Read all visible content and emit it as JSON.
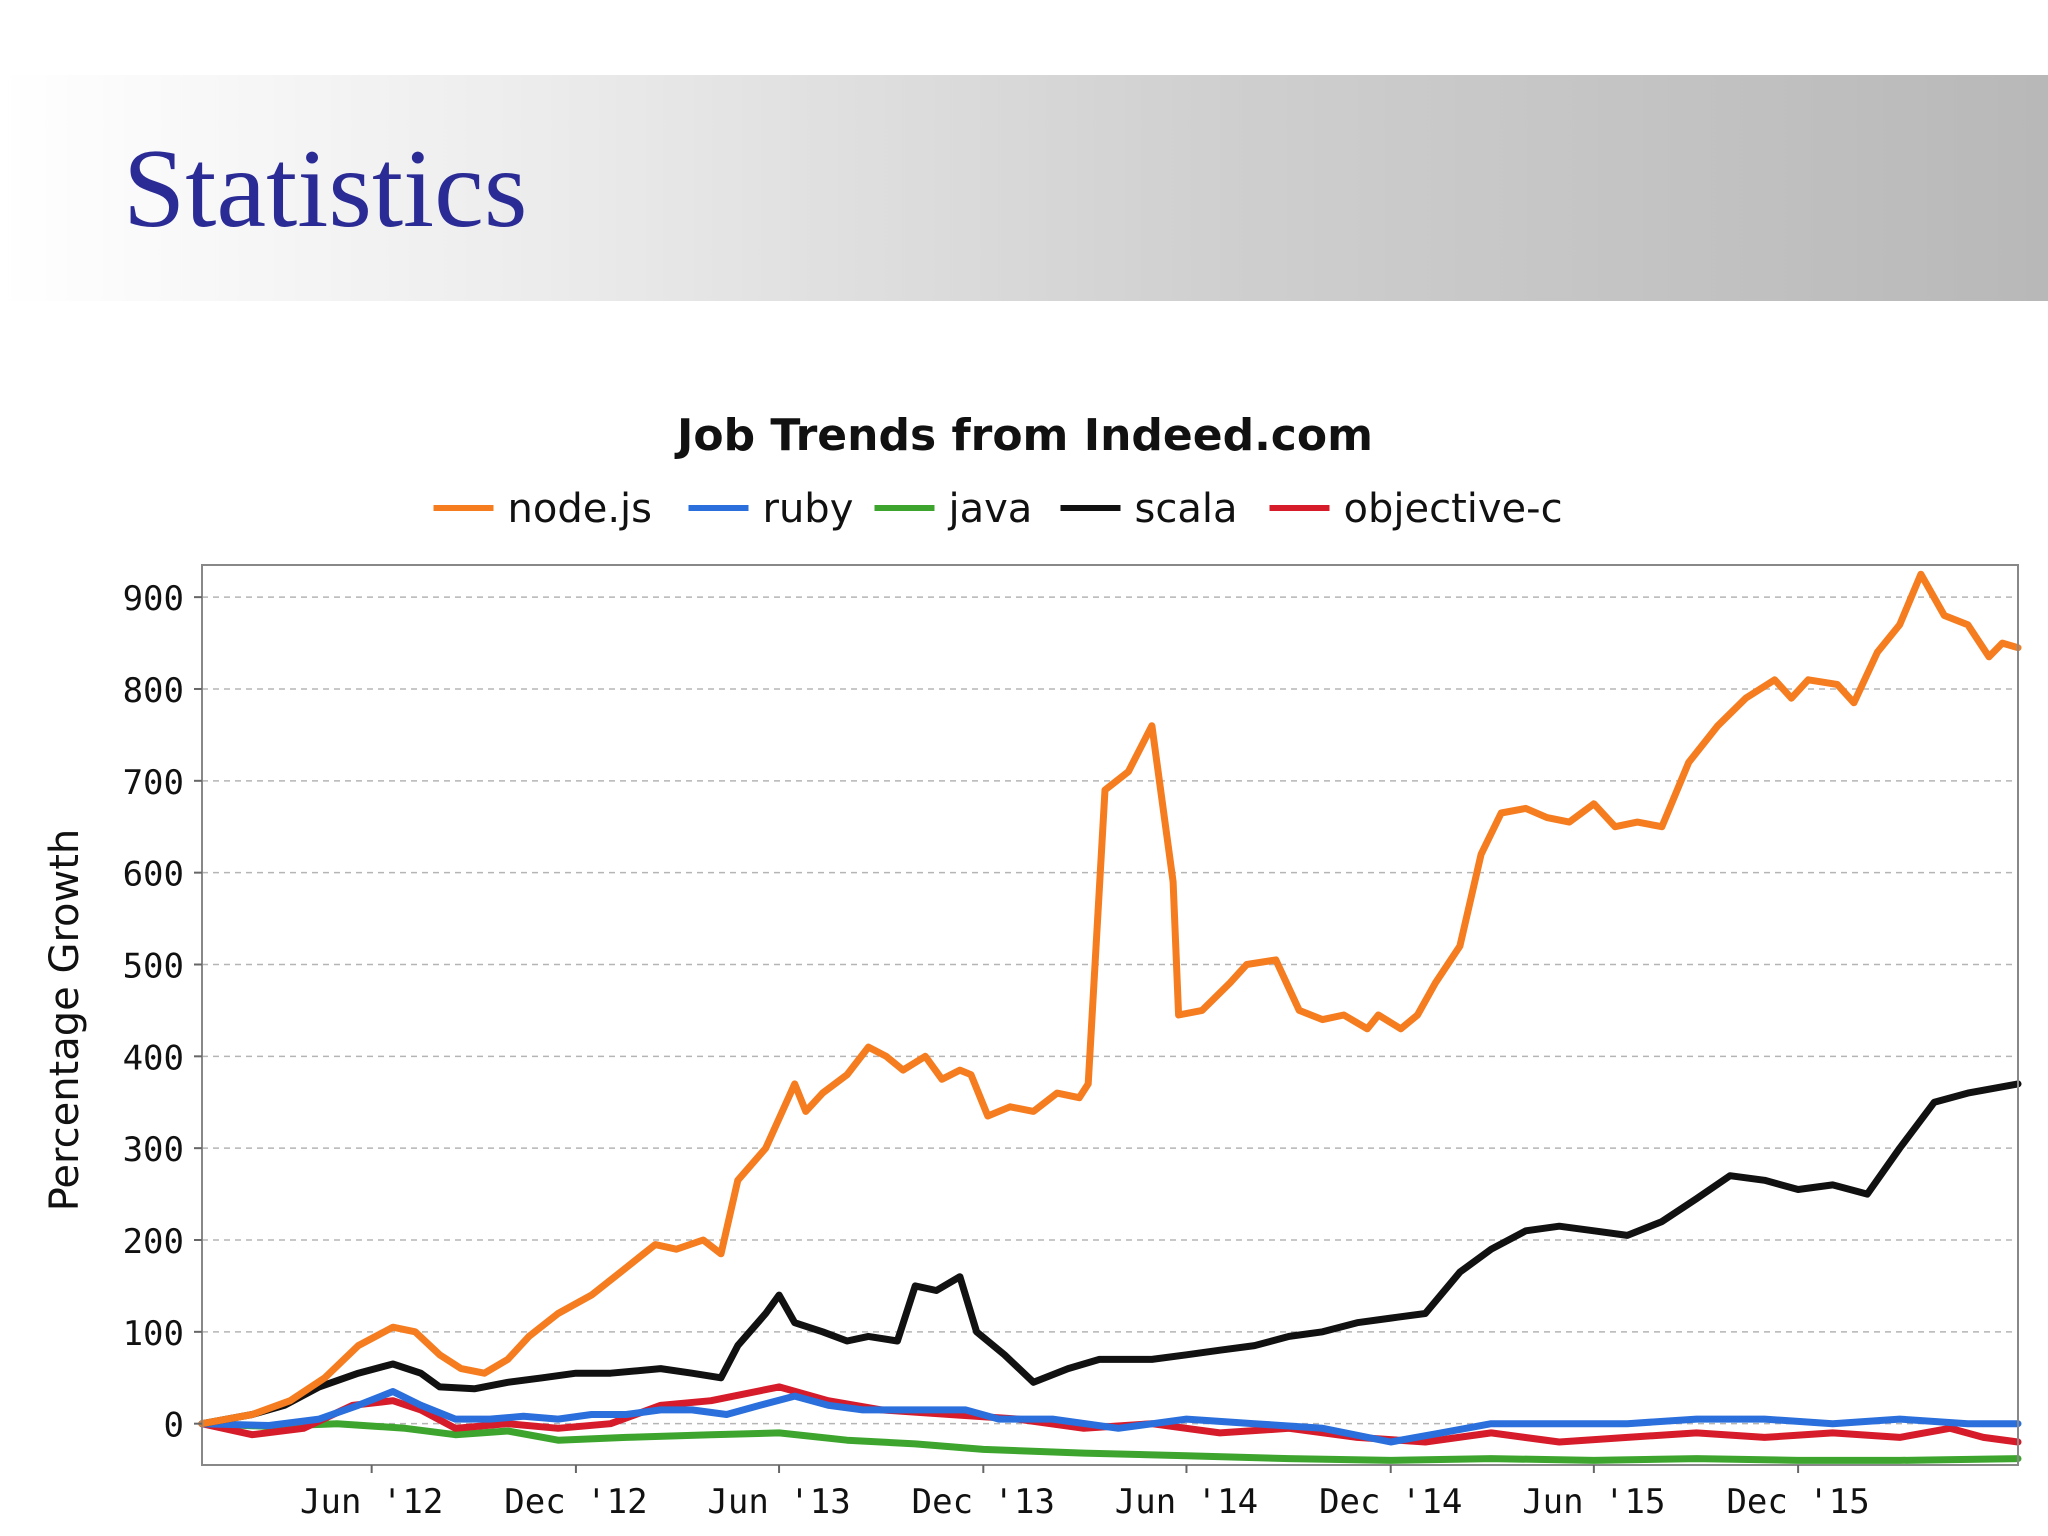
{
  "slide": {
    "title": "Statistics"
  },
  "chart_data": {
    "type": "line",
    "title": "Job Trends from Indeed.com",
    "ylabel": "Percentage Growth",
    "xlabel": "",
    "ylim": [
      -45,
      935
    ],
    "yticks": [
      0,
      100,
      200,
      300,
      400,
      500,
      600,
      700,
      800,
      900
    ],
    "xlim": [
      "2012-01-01",
      "2016-06-15"
    ],
    "xticks": [
      {
        "date": "2012-06-01",
        "label": "Jun '12"
      },
      {
        "date": "2012-12-01",
        "label": "Dec '12"
      },
      {
        "date": "2013-06-01",
        "label": "Jun '13"
      },
      {
        "date": "2013-12-01",
        "label": "Dec '13"
      },
      {
        "date": "2014-06-01",
        "label": "Jun '14"
      },
      {
        "date": "2014-12-01",
        "label": "Dec '14"
      },
      {
        "date": "2015-06-01",
        "label": "Jun '15"
      },
      {
        "date": "2015-12-01",
        "label": "Dec '15"
      }
    ],
    "grid": true,
    "legend_position": "top",
    "series": [
      {
        "name": "node.js",
        "color": "#f57c1f",
        "points": [
          [
            "2012-01-01",
            0
          ],
          [
            "2012-02-15",
            10
          ],
          [
            "2012-03-20",
            25
          ],
          [
            "2012-04-20",
            50
          ],
          [
            "2012-05-20",
            85
          ],
          [
            "2012-06-20",
            105
          ],
          [
            "2012-07-10",
            100
          ],
          [
            "2012-08-01",
            75
          ],
          [
            "2012-08-20",
            60
          ],
          [
            "2012-09-10",
            55
          ],
          [
            "2012-10-01",
            70
          ],
          [
            "2012-10-20",
            95
          ],
          [
            "2012-11-15",
            120
          ],
          [
            "2012-12-15",
            140
          ],
          [
            "2013-01-10",
            165
          ],
          [
            "2013-02-10",
            195
          ],
          [
            "2013-03-01",
            190
          ],
          [
            "2013-03-25",
            200
          ],
          [
            "2013-04-10",
            185
          ],
          [
            "2013-04-25",
            265
          ],
          [
            "2013-05-20",
            300
          ],
          [
            "2013-06-15",
            370
          ],
          [
            "2013-06-25",
            340
          ],
          [
            "2013-07-10",
            360
          ],
          [
            "2013-08-01",
            380
          ],
          [
            "2013-08-20",
            410
          ],
          [
            "2013-09-05",
            400
          ],
          [
            "2013-09-20",
            385
          ],
          [
            "2013-10-10",
            400
          ],
          [
            "2013-10-25",
            375
          ],
          [
            "2013-11-10",
            385
          ],
          [
            "2013-11-20",
            380
          ],
          [
            "2013-12-05",
            335
          ],
          [
            "2013-12-25",
            345
          ],
          [
            "2014-01-15",
            340
          ],
          [
            "2014-02-05",
            360
          ],
          [
            "2014-02-25",
            355
          ],
          [
            "2014-03-05",
            370
          ],
          [
            "2014-03-20",
            690
          ],
          [
            "2014-04-10",
            710
          ],
          [
            "2014-05-01",
            760
          ],
          [
            "2014-05-20",
            590
          ],
          [
            "2014-05-25",
            445
          ],
          [
            "2014-06-15",
            450
          ],
          [
            "2014-07-10",
            480
          ],
          [
            "2014-07-25",
            500
          ],
          [
            "2014-08-20",
            505
          ],
          [
            "2014-09-10",
            450
          ],
          [
            "2014-10-01",
            440
          ],
          [
            "2014-10-20",
            445
          ],
          [
            "2014-11-10",
            430
          ],
          [
            "2014-11-20",
            445
          ],
          [
            "2014-12-10",
            430
          ],
          [
            "2014-12-25",
            445
          ],
          [
            "2015-01-10",
            480
          ],
          [
            "2015-02-01",
            520
          ],
          [
            "2015-02-20",
            620
          ],
          [
            "2015-03-10",
            665
          ],
          [
            "2015-04-01",
            670
          ],
          [
            "2015-04-20",
            660
          ],
          [
            "2015-05-10",
            655
          ],
          [
            "2015-06-01",
            675
          ],
          [
            "2015-06-20",
            650
          ],
          [
            "2015-07-10",
            655
          ],
          [
            "2015-08-01",
            650
          ],
          [
            "2015-08-25",
            720
          ],
          [
            "2015-09-20",
            760
          ],
          [
            "2015-10-15",
            790
          ],
          [
            "2015-11-10",
            810
          ],
          [
            "2015-11-25",
            790
          ],
          [
            "2015-12-10",
            810
          ],
          [
            "2016-01-05",
            805
          ],
          [
            "2016-01-20",
            785
          ],
          [
            "2016-02-10",
            840
          ],
          [
            "2016-03-01",
            870
          ],
          [
            "2016-03-20",
            925
          ],
          [
            "2016-04-10",
            880
          ],
          [
            "2016-05-01",
            870
          ],
          [
            "2016-05-20",
            835
          ],
          [
            "2016-06-01",
            850
          ],
          [
            "2016-06-15",
            845
          ]
        ]
      },
      {
        "name": "ruby",
        "color": "#2a6fdc",
        "points": [
          [
            "2012-01-01",
            0
          ],
          [
            "2012-03-01",
            -2
          ],
          [
            "2012-04-15",
            5
          ],
          [
            "2012-05-20",
            20
          ],
          [
            "2012-06-20",
            35
          ],
          [
            "2012-07-15",
            20
          ],
          [
            "2012-08-15",
            5
          ],
          [
            "2012-09-15",
            5
          ],
          [
            "2012-10-15",
            8
          ],
          [
            "2012-11-15",
            5
          ],
          [
            "2012-12-15",
            10
          ],
          [
            "2013-01-15",
            10
          ],
          [
            "2013-02-15",
            15
          ],
          [
            "2013-03-15",
            15
          ],
          [
            "2013-04-15",
            10
          ],
          [
            "2013-05-15",
            20
          ],
          [
            "2013-06-15",
            30
          ],
          [
            "2013-07-15",
            20
          ],
          [
            "2013-08-15",
            15
          ],
          [
            "2013-09-15",
            15
          ],
          [
            "2013-10-15",
            15
          ],
          [
            "2013-11-15",
            15
          ],
          [
            "2013-12-15",
            5
          ],
          [
            "2014-02-01",
            5
          ],
          [
            "2014-04-01",
            -5
          ],
          [
            "2014-06-01",
            5
          ],
          [
            "2014-08-01",
            0
          ],
          [
            "2014-10-01",
            -5
          ],
          [
            "2014-12-01",
            -20
          ],
          [
            "2015-01-15",
            -10
          ],
          [
            "2015-03-01",
            0
          ],
          [
            "2015-05-01",
            0
          ],
          [
            "2015-07-01",
            0
          ],
          [
            "2015-09-01",
            5
          ],
          [
            "2015-11-01",
            5
          ],
          [
            "2016-01-01",
            0
          ],
          [
            "2016-03-01",
            5
          ],
          [
            "2016-05-01",
            0
          ],
          [
            "2016-06-15",
            0
          ]
        ]
      },
      {
        "name": "java",
        "color": "#3da52e",
        "points": [
          [
            "2012-01-01",
            0
          ],
          [
            "2012-03-01",
            -3
          ],
          [
            "2012-05-01",
            0
          ],
          [
            "2012-07-01",
            -5
          ],
          [
            "2012-08-15",
            -12
          ],
          [
            "2012-10-01",
            -8
          ],
          [
            "2012-11-15",
            -18
          ],
          [
            "2013-01-15",
            -15
          ],
          [
            "2013-04-01",
            -12
          ],
          [
            "2013-06-01",
            -10
          ],
          [
            "2013-08-01",
            -18
          ],
          [
            "2013-10-01",
            -22
          ],
          [
            "2013-12-01",
            -28
          ],
          [
            "2014-03-01",
            -32
          ],
          [
            "2014-06-01",
            -35
          ],
          [
            "2014-09-01",
            -38
          ],
          [
            "2014-12-01",
            -40
          ],
          [
            "2015-03-01",
            -38
          ],
          [
            "2015-06-01",
            -40
          ],
          [
            "2015-09-01",
            -38
          ],
          [
            "2015-12-01",
            -40
          ],
          [
            "2016-03-01",
            -40
          ],
          [
            "2016-06-15",
            -38
          ]
        ]
      },
      {
        "name": "scala",
        "color": "#111111",
        "points": [
          [
            "2012-01-01",
            0
          ],
          [
            "2012-02-15",
            10
          ],
          [
            "2012-03-15",
            20
          ],
          [
            "2012-04-15",
            40
          ],
          [
            "2012-05-20",
            55
          ],
          [
            "2012-06-20",
            65
          ],
          [
            "2012-07-15",
            55
          ],
          [
            "2012-08-01",
            40
          ],
          [
            "2012-09-01",
            38
          ],
          [
            "2012-10-01",
            45
          ],
          [
            "2012-11-01",
            50
          ],
          [
            "2012-12-01",
            55
          ],
          [
            "2013-01-01",
            55
          ],
          [
            "2013-02-15",
            60
          ],
          [
            "2013-03-15",
            55
          ],
          [
            "2013-04-10",
            50
          ],
          [
            "2013-04-25",
            85
          ],
          [
            "2013-05-20",
            120
          ],
          [
            "2013-06-01",
            140
          ],
          [
            "2013-06-15",
            110
          ],
          [
            "2013-07-10",
            100
          ],
          [
            "2013-08-01",
            90
          ],
          [
            "2013-08-20",
            95
          ],
          [
            "2013-09-15",
            90
          ],
          [
            "2013-10-01",
            150
          ],
          [
            "2013-10-20",
            145
          ],
          [
            "2013-11-10",
            160
          ],
          [
            "2013-11-25",
            100
          ],
          [
            "2013-12-20",
            75
          ],
          [
            "2014-01-15",
            45
          ],
          [
            "2014-02-15",
            60
          ],
          [
            "2014-03-15",
            70
          ],
          [
            "2014-05-01",
            70
          ],
          [
            "2014-06-01",
            75
          ],
          [
            "2014-07-01",
            80
          ],
          [
            "2014-08-01",
            85
          ],
          [
            "2014-09-01",
            95
          ],
          [
            "2014-10-01",
            100
          ],
          [
            "2014-11-01",
            110
          ],
          [
            "2014-12-01",
            115
          ],
          [
            "2015-01-01",
            120
          ],
          [
            "2015-02-01",
            165
          ],
          [
            "2015-03-01",
            190
          ],
          [
            "2015-04-01",
            210
          ],
          [
            "2015-05-01",
            215
          ],
          [
            "2015-06-01",
            210
          ],
          [
            "2015-07-01",
            205
          ],
          [
            "2015-08-01",
            220
          ],
          [
            "2015-09-01",
            245
          ],
          [
            "2015-10-01",
            270
          ],
          [
            "2015-11-01",
            265
          ],
          [
            "2015-12-01",
            255
          ],
          [
            "2016-01-01",
            260
          ],
          [
            "2016-02-01",
            250
          ],
          [
            "2016-03-01",
            300
          ],
          [
            "2016-04-01",
            350
          ],
          [
            "2016-05-01",
            360
          ],
          [
            "2016-06-15",
            370
          ]
        ]
      },
      {
        "name": "objective-c",
        "color": "#d61c2a",
        "points": [
          [
            "2012-01-01",
            0
          ],
          [
            "2012-02-15",
            -12
          ],
          [
            "2012-04-01",
            -5
          ],
          [
            "2012-05-15",
            20
          ],
          [
            "2012-06-20",
            25
          ],
          [
            "2012-07-15",
            15
          ],
          [
            "2012-08-15",
            -5
          ],
          [
            "2012-10-01",
            0
          ],
          [
            "2012-11-15",
            -5
          ],
          [
            "2013-01-01",
            0
          ],
          [
            "2013-02-15",
            20
          ],
          [
            "2013-04-01",
            25
          ],
          [
            "2013-06-01",
            40
          ],
          [
            "2013-07-15",
            25
          ],
          [
            "2013-09-01",
            15
          ],
          [
            "2013-11-01",
            10
          ],
          [
            "2014-01-01",
            5
          ],
          [
            "2014-03-01",
            -5
          ],
          [
            "2014-05-01",
            0
          ],
          [
            "2014-07-01",
            -10
          ],
          [
            "2014-09-01",
            -5
          ],
          [
            "2014-11-01",
            -15
          ],
          [
            "2015-01-01",
            -20
          ],
          [
            "2015-03-01",
            -10
          ],
          [
            "2015-05-01",
            -20
          ],
          [
            "2015-07-01",
            -15
          ],
          [
            "2015-09-01",
            -10
          ],
          [
            "2015-11-01",
            -15
          ],
          [
            "2016-01-01",
            -10
          ],
          [
            "2016-03-01",
            -15
          ],
          [
            "2016-04-15",
            -5
          ],
          [
            "2016-05-15",
            -15
          ],
          [
            "2016-06-15",
            -20
          ]
        ]
      }
    ]
  }
}
